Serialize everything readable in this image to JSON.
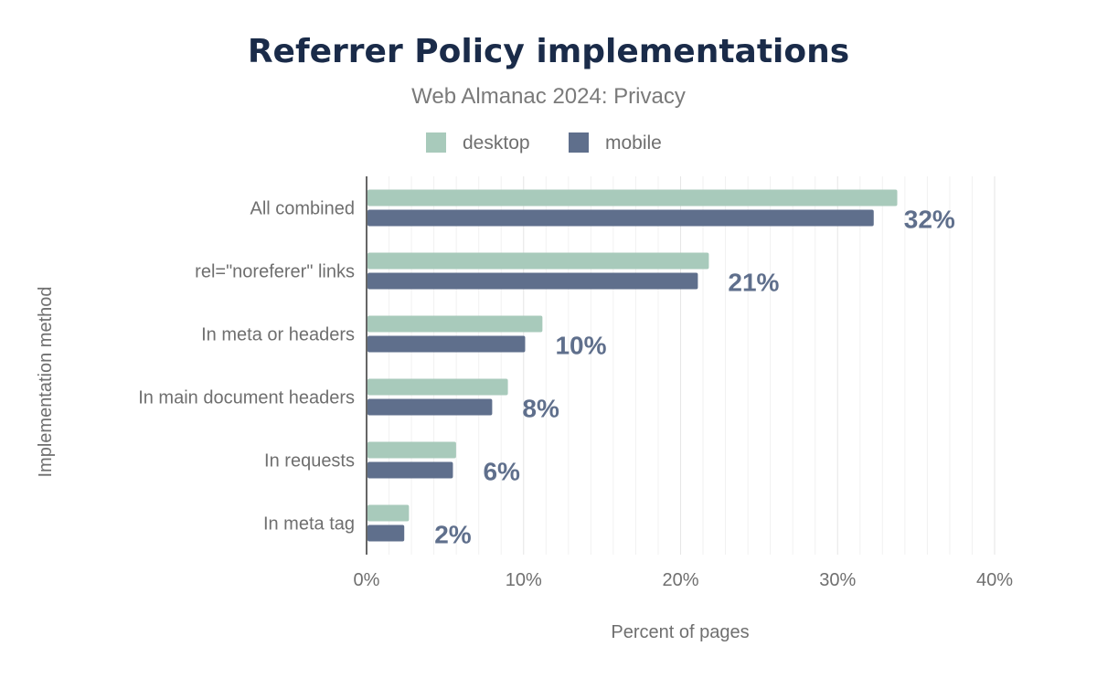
{
  "chart_data": {
    "type": "bar",
    "orientation": "horizontal",
    "title": "Referrer Policy implementations",
    "subtitle": "Web Almanac 2024: Privacy",
    "xlabel": "Percent of pages",
    "ylabel": "Implementation method",
    "categories": [
      "All combined",
      "rel=\"noreferer\" links",
      "In meta or headers",
      "In main document headers",
      "In requests",
      "In meta tag"
    ],
    "series": [
      {
        "name": "desktop",
        "color": "#a8cabb",
        "values": [
          33.8,
          21.8,
          11.2,
          9.0,
          5.7,
          2.7
        ]
      },
      {
        "name": "mobile",
        "color": "#5f6f8c",
        "values": [
          32.3,
          21.1,
          10.1,
          8.0,
          5.5,
          2.4
        ],
        "data_labels": [
          "32%",
          "21%",
          "10%",
          "8%",
          "6%",
          "2%"
        ]
      }
    ],
    "xlim": [
      0,
      40
    ],
    "xticks": [
      "0%",
      "10%",
      "20%",
      "30%",
      "40%"
    ],
    "grid": true,
    "legend": "top-center"
  }
}
